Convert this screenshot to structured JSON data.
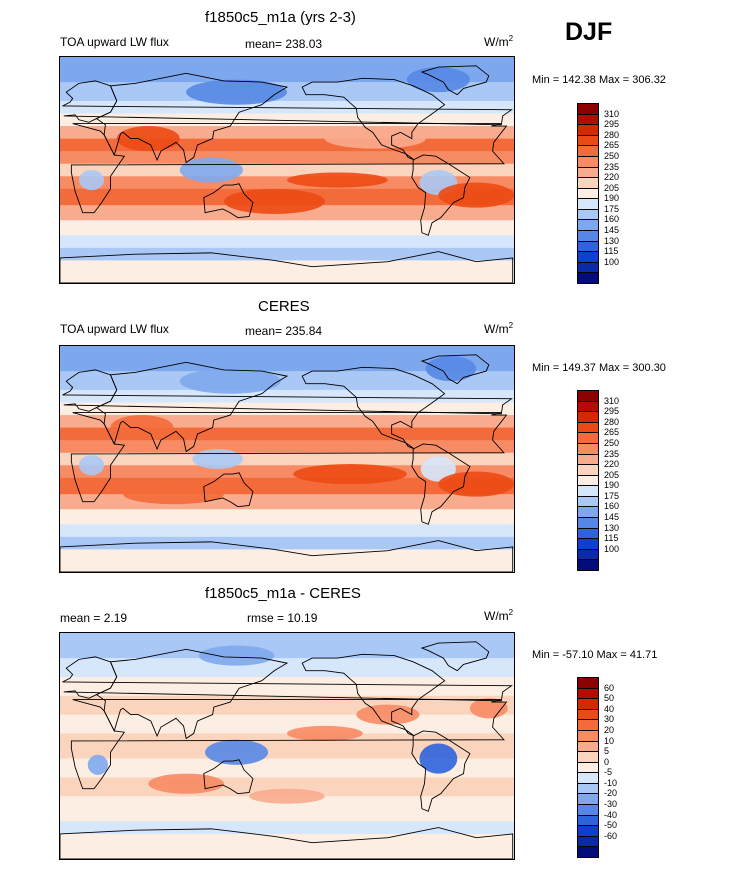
{
  "season": "DJF",
  "panels": [
    {
      "title": "f1850c5_m1a (yrs 2-3)",
      "left_label": "TOA upward LW flux",
      "center_label": "mean= 238.03",
      "units_base": "W/m",
      "units_exp": "2",
      "minmax": "Min = 142.38 Max = 306.32",
      "colorbar": {
        "levels": [
          "310",
          "295",
          "280",
          "265",
          "250",
          "235",
          "220",
          "205",
          "190",
          "175",
          "160",
          "145",
          "130",
          "115",
          "100"
        ],
        "colors": [
          "#8b0000",
          "#b30c00",
          "#d42800",
          "#ec4a14",
          "#f36b3a",
          "#f78b63",
          "#f9ab8d",
          "#fbd4bd",
          "#fdeee3",
          "#d6e6fb",
          "#aac8f5",
          "#7ea8ee",
          "#5687e6",
          "#2f63dc",
          "#0f3fcf",
          "#0a2aa8",
          "#020c7a"
        ]
      },
      "chart_data": {
        "type": "heatmap",
        "kind": "global map (cylindrical equidistant)",
        "field": "TOA upward LW flux",
        "units": "W/m2",
        "mean": 238.03,
        "min": 142.38,
        "max": 306.32,
        "contour_levels": [
          100,
          115,
          130,
          145,
          160,
          175,
          190,
          205,
          220,
          235,
          250,
          265,
          280,
          295,
          310
        ]
      }
    },
    {
      "title": "CERES",
      "left_label": "TOA upward LW flux",
      "center_label": "mean= 235.84",
      "units_base": "W/m",
      "units_exp": "2",
      "minmax": "Min = 149.37 Max = 300.30",
      "colorbar": {
        "levels": [
          "310",
          "295",
          "280",
          "265",
          "250",
          "235",
          "220",
          "205",
          "190",
          "175",
          "160",
          "145",
          "130",
          "115",
          "100"
        ],
        "colors": [
          "#8b0000",
          "#b30c00",
          "#d42800",
          "#ec4a14",
          "#f36b3a",
          "#f78b63",
          "#f9ab8d",
          "#fbd4bd",
          "#fdeee3",
          "#d6e6fb",
          "#aac8f5",
          "#7ea8ee",
          "#5687e6",
          "#2f63dc",
          "#0f3fcf",
          "#0a2aa8",
          "#020c7a"
        ]
      },
      "chart_data": {
        "type": "heatmap",
        "kind": "global map (cylindrical equidistant)",
        "field": "TOA upward LW flux",
        "units": "W/m2",
        "mean": 235.84,
        "min": 149.37,
        "max": 300.3,
        "contour_levels": [
          100,
          115,
          130,
          145,
          160,
          175,
          190,
          205,
          220,
          235,
          250,
          265,
          280,
          295,
          310
        ]
      }
    },
    {
      "title": "f1850c5_m1a - CERES",
      "left_label": "mean =   2.19",
      "center_label": "rmse =  10.19",
      "units_base": "W/m",
      "units_exp": "2",
      "minmax": "Min = -57.10 Max =  41.71",
      "colorbar": {
        "levels": [
          "60",
          "50",
          "40",
          "30",
          "20",
          "10",
          "5",
          "0",
          "-5",
          "-10",
          "-20",
          "-30",
          "-40",
          "-50",
          "-60"
        ],
        "colors": [
          "#8b0000",
          "#b30c00",
          "#d42800",
          "#ec4a14",
          "#f36b3a",
          "#f78b63",
          "#f9ab8d",
          "#fbd4bd",
          "#fdeee3",
          "#d6e6fb",
          "#aac8f5",
          "#7ea8ee",
          "#5687e6",
          "#2f63dc",
          "#0f3fcf",
          "#0a2aa8",
          "#020c7a"
        ]
      },
      "chart_data": {
        "type": "heatmap",
        "kind": "global map (cylindrical equidistant)",
        "field": "difference f1850c5_m1a - CERES",
        "units": "W/m2",
        "mean": 2.19,
        "rmse": 10.19,
        "min": -57.1,
        "max": 41.71,
        "contour_levels": [
          -60,
          -50,
          -40,
          -30,
          -20,
          -10,
          -5,
          0,
          5,
          10,
          20,
          30,
          40,
          50,
          60
        ]
      }
    }
  ]
}
